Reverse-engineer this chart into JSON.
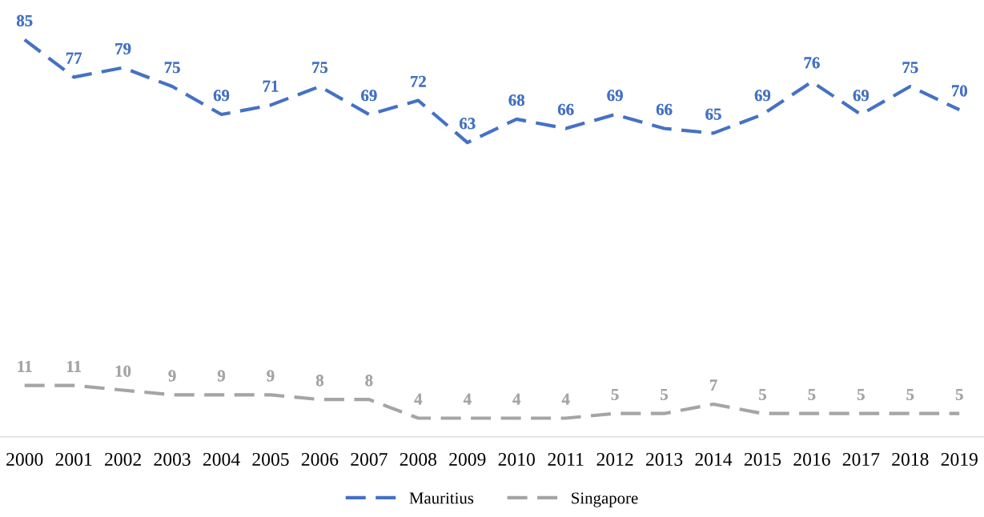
{
  "chart_data": {
    "type": "line",
    "categories": [
      "2000",
      "2001",
      "2002",
      "2003",
      "2004",
      "2005",
      "2006",
      "2007",
      "2008",
      "2009",
      "2010",
      "2011",
      "2012",
      "2013",
      "2014",
      "2015",
      "2016",
      "2017",
      "2018",
      "2019"
    ],
    "series": [
      {
        "name": "Mauritius",
        "color": "#4472c4",
        "values": [
          85,
          77,
          79,
          75,
          69,
          71,
          75,
          69,
          72,
          63,
          68,
          66,
          69,
          66,
          65,
          69,
          76,
          69,
          75,
          70
        ]
      },
      {
        "name": "Singapore",
        "color": "#a5a5a5",
        "values": [
          11,
          11,
          10,
          9,
          9,
          9,
          8,
          8,
          4,
          4,
          4,
          4,
          5,
          5,
          7,
          5,
          5,
          5,
          5,
          5
        ]
      }
    ],
    "data_labels": true,
    "line_style": "dashed",
    "marker": "none",
    "grid": false,
    "legend": "bottom",
    "tick_labels": "x"
  }
}
